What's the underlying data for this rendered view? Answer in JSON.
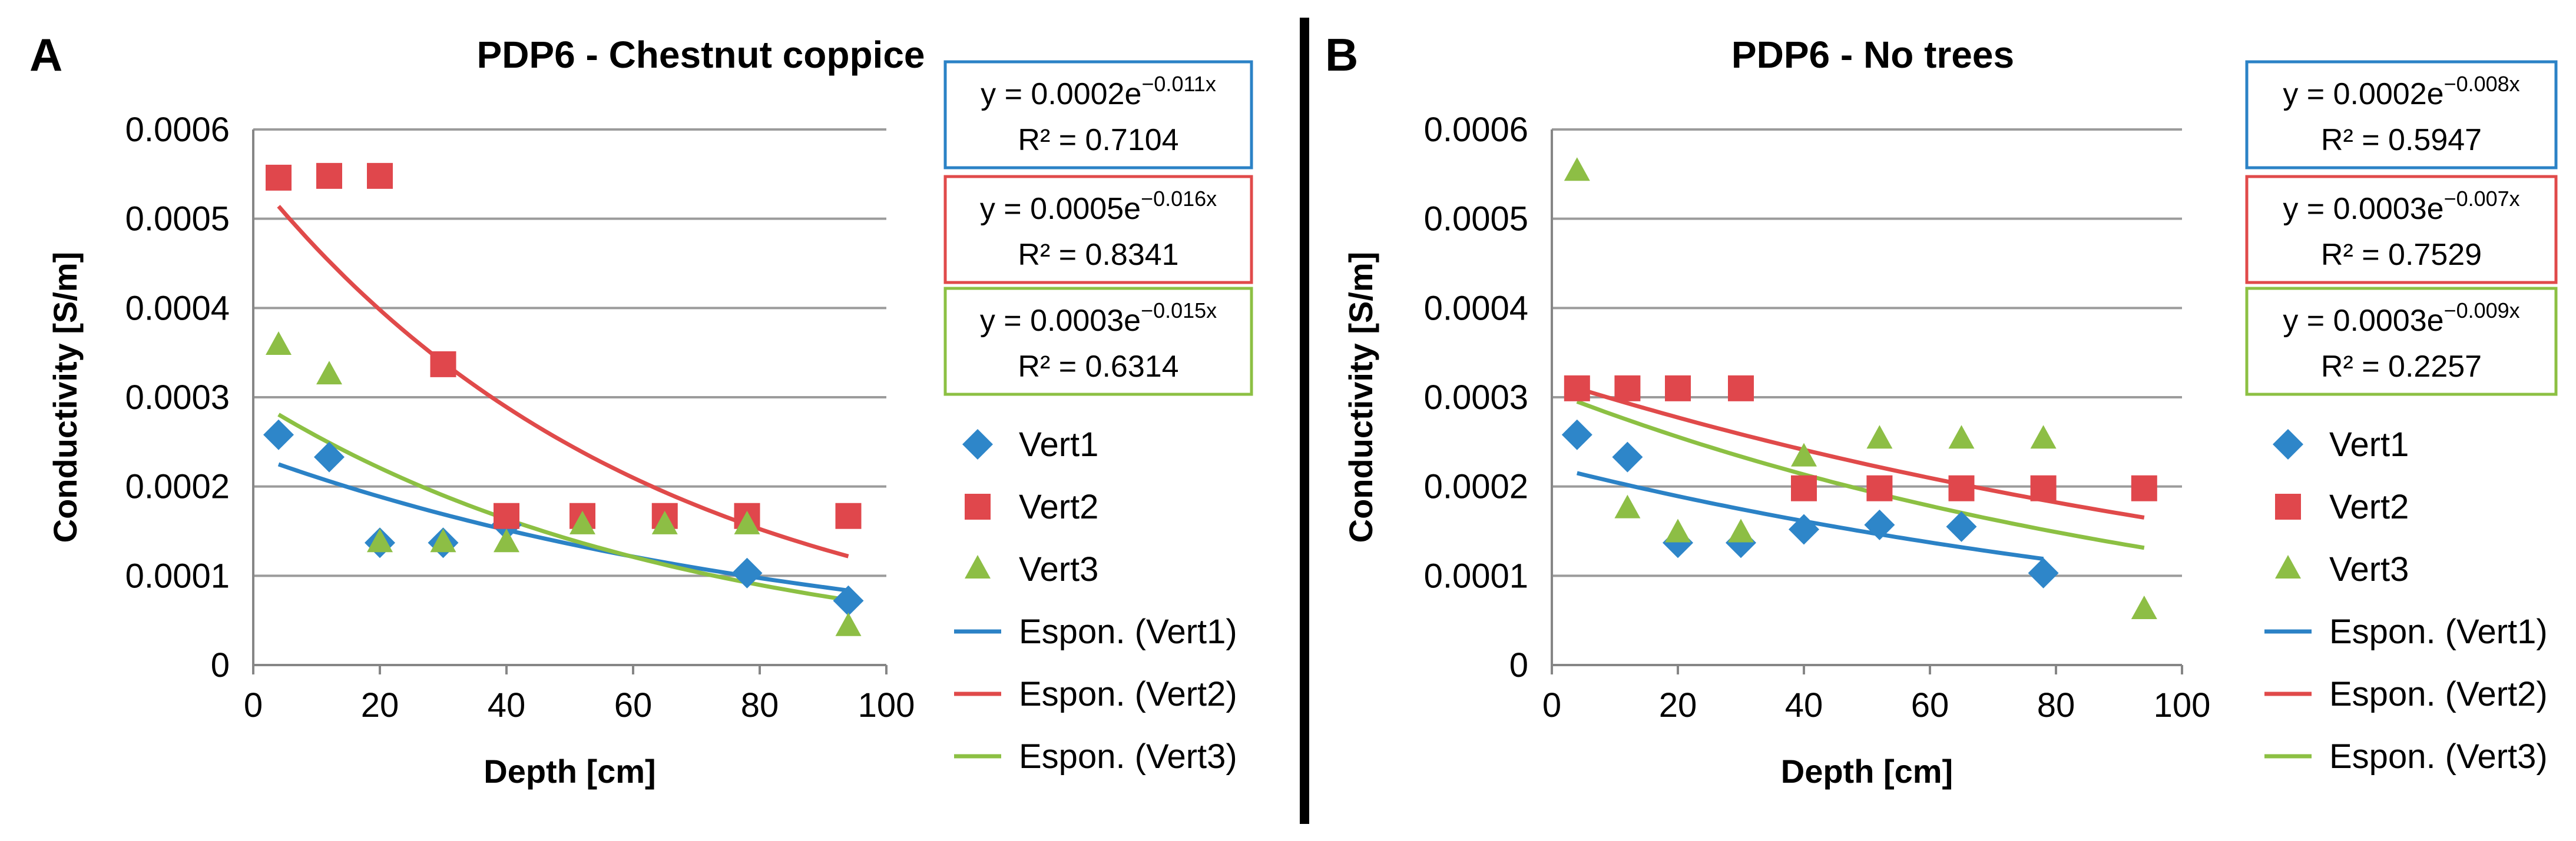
{
  "divider_color": "#000000",
  "marker_colors": {
    "Vert1": "#2E86C9",
    "Vert2": "#E0474C",
    "Vert3": "#8DBE45"
  },
  "trend_colors": {
    "Vert1": "#2B82C6",
    "Vert2": "#E04A4A",
    "Vert3": "#8CC043"
  },
  "chart_data": [
    {
      "type": "scatter",
      "panel_label": "A",
      "title": "PDP6 - Chestnut coppice",
      "xlabel": "Depth [cm]",
      "ylabel": "Conductivity  [S/m]",
      "xlim": [
        0,
        100
      ],
      "ylim": [
        0,
        0.0006
      ],
      "x_ticks": [
        "0",
        "20",
        "40",
        "60",
        "80",
        "100"
      ],
      "y_ticks": [
        "0",
        "0.0001",
        "0.0002",
        "0.0003",
        "0.0004",
        "0.0005",
        "0.0006"
      ],
      "grid": "horizontal",
      "series": [
        {
          "name": "Vert1",
          "marker": "diamond",
          "x": [
            4,
            12,
            20,
            30,
            40,
            78,
            94
          ],
          "y": [
            0.000258,
            0.000233,
            0.000137,
            0.000137,
            0.000157,
            0.000103,
            7.2e-05
          ]
        },
        {
          "name": "Vert2",
          "marker": "square",
          "x": [
            4,
            12,
            20,
            30,
            40,
            52,
            65,
            78,
            94
          ],
          "y": [
            0.000546,
            0.000548,
            0.000548,
            0.000337,
            0.000167,
            0.000167,
            0.000167,
            0.000167,
            0.000167
          ]
        },
        {
          "name": "Vert3",
          "marker": "triangle",
          "x": [
            4,
            12,
            20,
            30,
            40,
            52,
            65,
            78,
            94
          ],
          "y": [
            0.000358,
            0.000325,
            0.000137,
            0.000137,
            0.000137,
            0.000157,
            0.000157,
            0.000157,
            4.3e-05
          ]
        }
      ],
      "trendlines": [
        {
          "name": "Espon. (Vert1)",
          "series": "Vert1",
          "a": 0.000235,
          "b": -0.011,
          "x_range": [
            4,
            94
          ]
        },
        {
          "name": "Espon. (Vert2)",
          "series": "Vert2",
          "a": 0.000548,
          "b": -0.016,
          "x_range": [
            4,
            94
          ]
        },
        {
          "name": "Espon. (Vert3)",
          "series": "Vert3",
          "a": 0.000298,
          "b": -0.015,
          "x_range": [
            4,
            94
          ]
        }
      ],
      "equations": [
        {
          "series": "Vert1",
          "prefix": "y = 0.0002e",
          "exponent": "−0.011x",
          "r2": "R² = 0.7104"
        },
        {
          "series": "Vert2",
          "prefix": "y = 0.0005e",
          "exponent": "−0.016x",
          "r2": "R² = 0.8341"
        },
        {
          "series": "Vert3",
          "prefix": "y = 0.0003e",
          "exponent": "−0.015x",
          "r2": "R² = 0.6314"
        }
      ],
      "legend": [
        "Vert1",
        "Vert2",
        "Vert3",
        "Espon. (Vert1)",
        "Espon. (Vert2)",
        "Espon. (Vert3)"
      ],
      "legend_position": "right"
    },
    {
      "type": "scatter",
      "panel_label": "B",
      "title": "PDP6 - No trees",
      "xlabel": "Depth [cm]",
      "ylabel": "Conductivity  [S/m]",
      "xlim": [
        0,
        100
      ],
      "ylim": [
        0,
        0.0006
      ],
      "x_ticks": [
        "0",
        "20",
        "40",
        "60",
        "80",
        "100"
      ],
      "y_ticks": [
        "0",
        "0.0001",
        "0.0002",
        "0.0003",
        "0.0004",
        "0.0005",
        "0.0006"
      ],
      "grid": "horizontal",
      "series": [
        {
          "name": "Vert1",
          "marker": "diamond",
          "x": [
            4,
            12,
            20,
            30,
            40,
            52,
            65,
            78
          ],
          "y": [
            0.000258,
            0.000233,
            0.000137,
            0.000137,
            0.000152,
            0.000157,
            0.000155,
            0.000103
          ]
        },
        {
          "name": "Vert2",
          "marker": "square",
          "x": [
            4,
            12,
            20,
            30,
            40,
            52,
            65,
            78,
            94
          ],
          "y": [
            0.00031,
            0.00031,
            0.00031,
            0.00031,
            0.000198,
            0.000198,
            0.000198,
            0.000198,
            0.000198
          ]
        },
        {
          "name": "Vert3",
          "marker": "triangle",
          "x": [
            4,
            12,
            20,
            30,
            40,
            52,
            65,
            78,
            94
          ],
          "y": [
            0.000553,
            0.000175,
            0.000148,
            0.000148,
            0.000233,
            0.000253,
            0.000253,
            0.000253,
            6.2e-05
          ]
        }
      ],
      "trendlines": [
        {
          "name": "Espon. (Vert1)",
          "series": "Vert1",
          "a": 0.000222,
          "b": -0.008,
          "x_range": [
            4,
            78
          ]
        },
        {
          "name": "Espon. (Vert2)",
          "series": "Vert2",
          "a": 0.000319,
          "b": -0.007,
          "x_range": [
            4,
            94
          ]
        },
        {
          "name": "Espon. (Vert3)",
          "series": "Vert3",
          "a": 0.000306,
          "b": -0.009,
          "x_range": [
            4,
            94
          ]
        }
      ],
      "equations": [
        {
          "series": "Vert1",
          "prefix": "y = 0.0002e",
          "exponent": "−0.008x",
          "r2": "R² = 0.5947"
        },
        {
          "series": "Vert2",
          "prefix": "y = 0.0003e",
          "exponent": "−0.007x",
          "r2": "R² = 0.7529"
        },
        {
          "series": "Vert3",
          "prefix": "y = 0.0003e",
          "exponent": "−0.009x",
          "r2": "R² = 0.2257"
        }
      ],
      "legend": [
        "Vert1",
        "Vert2",
        "Vert3",
        "Espon. (Vert1)",
        "Espon. (Vert2)",
        "Espon. (Vert3)"
      ],
      "legend_position": "right"
    }
  ]
}
